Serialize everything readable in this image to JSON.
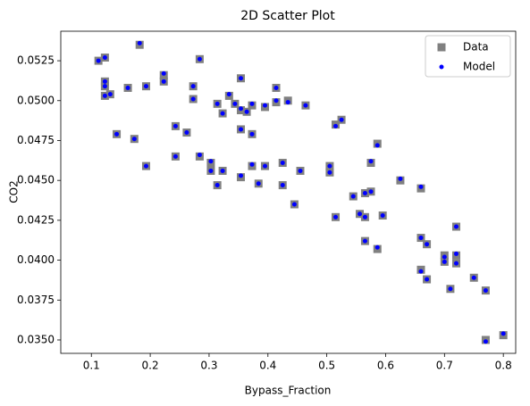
{
  "chart_data": {
    "type": "scatter",
    "title": "2D Scatter Plot",
    "x_label": "Bypass_Fraction",
    "y_label": "CO2",
    "xlim": [
      0.048,
      0.821
    ],
    "ylim": [
      0.03416,
      0.05435
    ],
    "xticks": [
      0.1,
      0.2,
      0.3,
      0.4,
      0.5,
      0.6,
      0.7,
      0.8
    ],
    "yticks": [
      {
        "value": 0.035,
        "label": "0.0350"
      },
      {
        "value": 0.0375,
        "label": "0.0375"
      },
      {
        "value": 0.04,
        "label": "0.0400"
      },
      {
        "value": 0.0425,
        "label": "0.0425"
      },
      {
        "value": 0.045,
        "label": "0.0450"
      },
      {
        "value": 0.0475,
        "label": "0.0475"
      },
      {
        "value": 0.05,
        "label": "0.0500"
      },
      {
        "value": 0.0525,
        "label": "0.0525"
      }
    ],
    "legend": "upper right",
    "series": [
      {
        "name": "Data",
        "color": "#808080",
        "marker": "square",
        "x": [
          0.112,
          0.123,
          0.123,
          0.123,
          0.123,
          0.132,
          0.143,
          0.162,
          0.173,
          0.182,
          0.193,
          0.193,
          0.223,
          0.223,
          0.243,
          0.243,
          0.262,
          0.273,
          0.273,
          0.284,
          0.284,
          0.303,
          0.303,
          0.314,
          0.314,
          0.323,
          0.323,
          0.334,
          0.344,
          0.354,
          0.354,
          0.354,
          0.354,
          0.364,
          0.373,
          0.373,
          0.373,
          0.384,
          0.395,
          0.395,
          0.414,
          0.414,
          0.425,
          0.425,
          0.434,
          0.445,
          0.455,
          0.464,
          0.505,
          0.505,
          0.515,
          0.515,
          0.525,
          0.545,
          0.556,
          0.565,
          0.565,
          0.565,
          0.575,
          0.575,
          0.586,
          0.586,
          0.595,
          0.625,
          0.66,
          0.66,
          0.66,
          0.67,
          0.67,
          0.7,
          0.7,
          0.71,
          0.72,
          0.72,
          0.72,
          0.75,
          0.77,
          0.77,
          0.8
        ],
        "y": [
          0.0525,
          0.0527,
          0.0512,
          0.0509,
          0.0503,
          0.0504,
          0.0479,
          0.0508,
          0.0476,
          0.0535,
          0.0509,
          0.0459,
          0.0516,
          0.0512,
          0.0484,
          0.0465,
          0.048,
          0.0509,
          0.0501,
          0.0526,
          0.0465,
          0.0461,
          0.0456,
          0.0498,
          0.0447,
          0.0492,
          0.0456,
          0.0503,
          0.0498,
          0.0514,
          0.0494,
          0.0482,
          0.0452,
          0.0493,
          0.0497,
          0.0479,
          0.0459,
          0.0448,
          0.0496,
          0.0459,
          0.0508,
          0.0499,
          0.0461,
          0.0447,
          0.05,
          0.0435,
          0.0456,
          0.0497,
          0.0459,
          0.0455,
          0.0485,
          0.0427,
          0.0488,
          0.044,
          0.0429,
          0.0427,
          0.0412,
          0.0442,
          0.0443,
          0.0461,
          0.0473,
          0.0407,
          0.0428,
          0.045,
          0.0445,
          0.0414,
          0.0394,
          0.041,
          0.0388,
          0.0403,
          0.0399,
          0.0382,
          0.0421,
          0.0403,
          0.0398,
          0.0389,
          0.0381,
          0.035,
          0.0353
        ]
      },
      {
        "name": "Model",
        "color": "#0000ff",
        "marker": "circle",
        "x": [
          0.112,
          0.123,
          0.123,
          0.123,
          0.123,
          0.132,
          0.143,
          0.162,
          0.173,
          0.182,
          0.193,
          0.193,
          0.223,
          0.223,
          0.243,
          0.243,
          0.262,
          0.273,
          0.273,
          0.284,
          0.284,
          0.303,
          0.303,
          0.314,
          0.314,
          0.323,
          0.323,
          0.334,
          0.344,
          0.354,
          0.354,
          0.354,
          0.354,
          0.364,
          0.373,
          0.373,
          0.373,
          0.384,
          0.395,
          0.395,
          0.414,
          0.414,
          0.425,
          0.425,
          0.434,
          0.445,
          0.455,
          0.464,
          0.505,
          0.505,
          0.515,
          0.515,
          0.525,
          0.545,
          0.556,
          0.565,
          0.565,
          0.565,
          0.575,
          0.575,
          0.586,
          0.586,
          0.595,
          0.625,
          0.66,
          0.66,
          0.66,
          0.67,
          0.67,
          0.7,
          0.7,
          0.71,
          0.72,
          0.72,
          0.72,
          0.75,
          0.77,
          0.77,
          0.8
        ],
        "y": [
          0.0525,
          0.0527,
          0.0512,
          0.0509,
          0.0503,
          0.0504,
          0.0479,
          0.0508,
          0.0476,
          0.0536,
          0.0509,
          0.0459,
          0.0517,
          0.0512,
          0.0484,
          0.0465,
          0.048,
          0.0509,
          0.0501,
          0.0526,
          0.0466,
          0.0462,
          0.0456,
          0.0498,
          0.0447,
          0.0492,
          0.0456,
          0.0504,
          0.0498,
          0.0514,
          0.0495,
          0.0482,
          0.0453,
          0.0493,
          0.0498,
          0.0479,
          0.046,
          0.0448,
          0.0497,
          0.0459,
          0.0508,
          0.05,
          0.0461,
          0.0447,
          0.0499,
          0.0435,
          0.0456,
          0.0497,
          0.0459,
          0.0455,
          0.0484,
          0.0427,
          0.0488,
          0.044,
          0.0429,
          0.0427,
          0.0412,
          0.0442,
          0.0443,
          0.0462,
          0.0472,
          0.0408,
          0.0428,
          0.0451,
          0.0446,
          0.0414,
          0.0393,
          0.041,
          0.0388,
          0.0402,
          0.0399,
          0.0382,
          0.0421,
          0.0404,
          0.0398,
          0.0389,
          0.0381,
          0.0349,
          0.0354
        ]
      }
    ]
  }
}
